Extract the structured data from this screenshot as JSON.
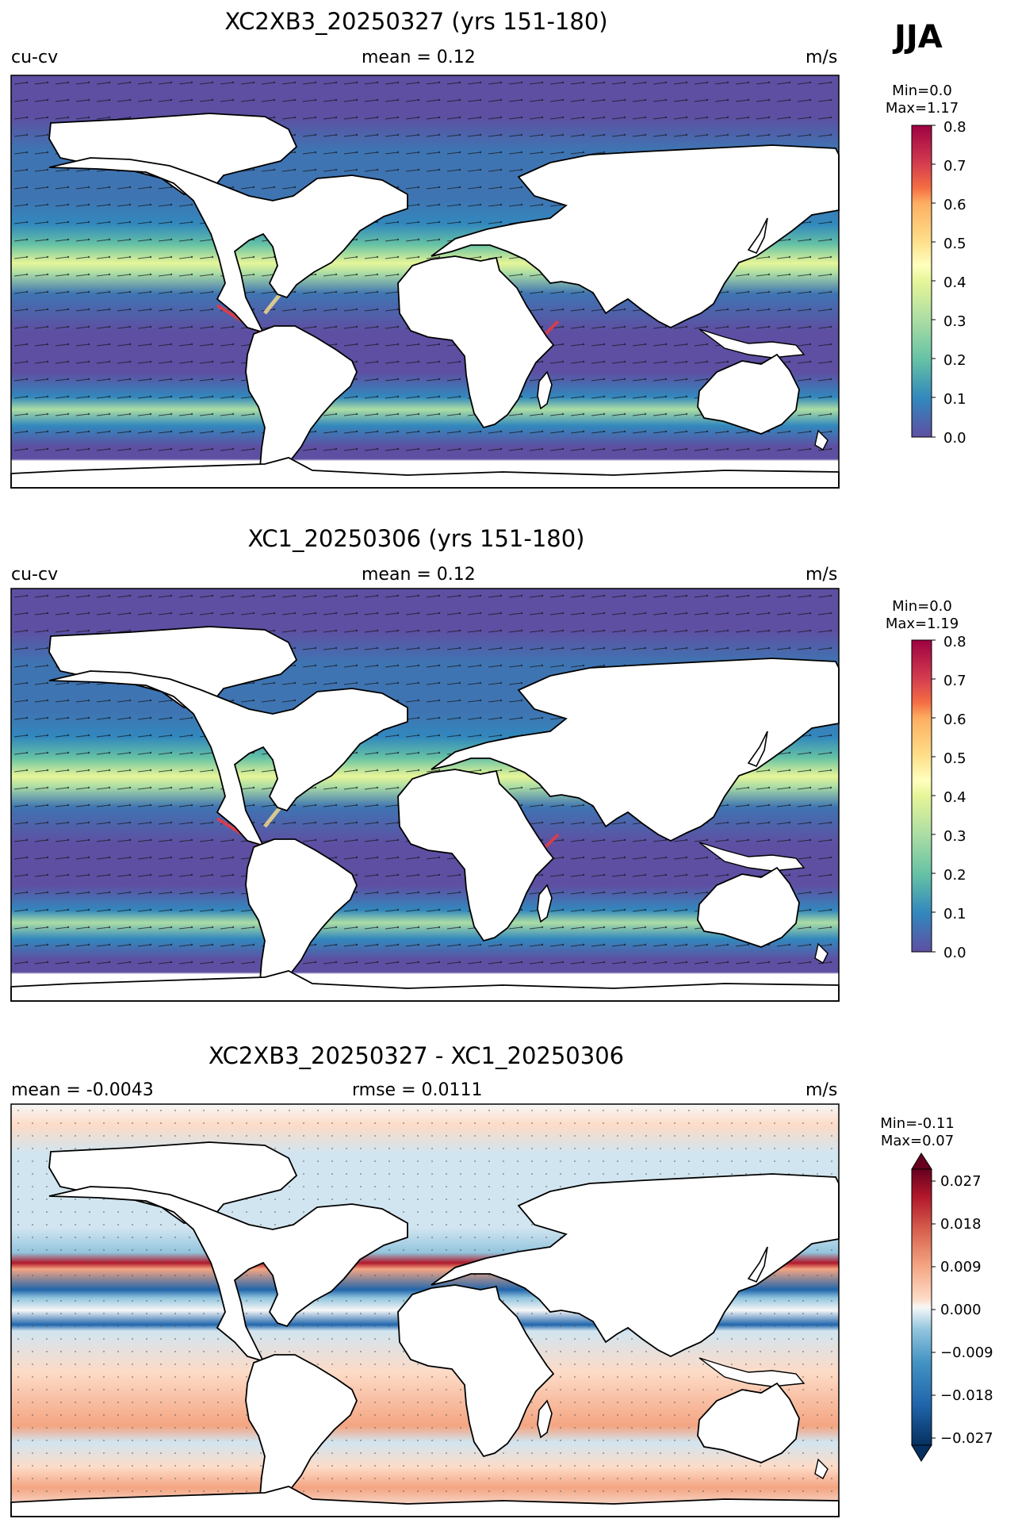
{
  "season": "JJA",
  "panels": [
    {
      "title": "XC2XB3_20250327 (yrs 151-180)",
      "left_label": "cu-cv",
      "center_label": "mean = 0.12",
      "right_label": "m/s",
      "min_text": "Min=0.0",
      "max_text": "Max=1.17"
    },
    {
      "title": "XC1_20250306 (yrs 151-180)",
      "left_label": "cu-cv",
      "center_label": "mean = 0.12",
      "right_label": "m/s",
      "min_text": "Min=0.0",
      "max_text": "Max=1.19"
    },
    {
      "title": "XC2XB3_20250327 - XC1_20250306",
      "left_label": "mean = -0.0043",
      "center_label": "rmse = 0.0111",
      "right_label": "m/s",
      "min_text": "Min=-0.11",
      "max_text": "Max=0.07"
    }
  ],
  "colorbars": {
    "speed": {
      "ticks": [
        "0.8",
        "0.7",
        "0.6",
        "0.5",
        "0.4",
        "0.3",
        "0.2",
        "0.1",
        "0.0"
      ],
      "colors": [
        "#5e4fa2",
        "#3f74b2",
        "#3288bd",
        "#66c2a5",
        "#abdda4",
        "#e6f598",
        "#ffffbf",
        "#fee08b",
        "#fdae61",
        "#f46d43",
        "#d53e4f",
        "#9e0142"
      ]
    },
    "diff": {
      "ticks": [
        "0.027",
        "0.018",
        "0.009",
        "0.000",
        "−0.009",
        "−0.018",
        "−0.027"
      ],
      "colors": [
        "#053061",
        "#2166ac",
        "#4393c3",
        "#92c5de",
        "#d1e5f0",
        "#f7f7f7",
        "#fddbc7",
        "#f4a582",
        "#d6604d",
        "#b2182b",
        "#67001f"
      ]
    }
  },
  "chart_data": [
    {
      "type": "heatmap",
      "title": "XC2XB3_20250327 (yrs 151-180)",
      "variable": "cu-cv",
      "units": "m/s",
      "mean": 0.12,
      "min": 0.0,
      "max": 1.17,
      "colorbar_range": [
        0.0,
        0.8
      ],
      "vectors": true
    },
    {
      "type": "heatmap",
      "title": "XC1_20250306 (yrs 151-180)",
      "variable": "cu-cv",
      "units": "m/s",
      "mean": 0.12,
      "min": 0.0,
      "max": 1.19,
      "colorbar_range": [
        0.0,
        0.8
      ],
      "vectors": true
    },
    {
      "type": "heatmap",
      "title": "XC2XB3_20250327 - XC1_20250306",
      "units": "m/s",
      "mean": -0.0043,
      "rmse": 0.0111,
      "min": -0.11,
      "max": 0.07,
      "colorbar_range": [
        -0.027,
        0.027
      ],
      "vectors": true
    }
  ]
}
